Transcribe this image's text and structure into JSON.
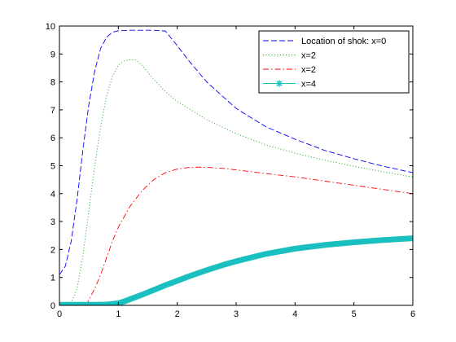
{
  "chart_data": {
    "type": "line",
    "title": "",
    "xlabel": "",
    "ylabel": "",
    "xlim": [
      0,
      6
    ],
    "ylim": [
      0,
      10
    ],
    "xticks": [
      0,
      1,
      2,
      3,
      4,
      5,
      6
    ],
    "yticks": [
      0,
      1,
      2,
      3,
      4,
      5,
      6,
      7,
      8,
      9,
      10
    ],
    "grid": false,
    "legend_position": "top-right",
    "series": [
      {
        "name": "Location of shok: x=0",
        "color": "#0000ff",
        "style": "dashed",
        "x": [
          0.0,
          0.1,
          0.2,
          0.3,
          0.4,
          0.5,
          0.6,
          0.7,
          0.8,
          0.9,
          1.0,
          1.2,
          1.4,
          1.6,
          1.8,
          2.0,
          2.2,
          2.5,
          3.0,
          3.5,
          4.0,
          4.5,
          5.0,
          5.5,
          6.0
        ],
        "y": [
          1.1,
          1.4,
          2.3,
          3.8,
          5.6,
          7.2,
          8.4,
          9.2,
          9.6,
          9.78,
          9.83,
          9.85,
          9.85,
          9.85,
          9.82,
          9.3,
          8.75,
          8.0,
          7.05,
          6.4,
          5.95,
          5.55,
          5.25,
          4.98,
          4.75
        ]
      },
      {
        "name": "x=2",
        "color": "#00a000",
        "style": "dotted",
        "x": [
          0.1,
          0.2,
          0.3,
          0.4,
          0.5,
          0.6,
          0.7,
          0.8,
          0.9,
          1.0,
          1.1,
          1.2,
          1.3,
          1.4,
          1.6,
          1.8,
          2.0,
          2.5,
          3.0,
          3.5,
          4.0,
          4.5,
          5.0,
          5.5,
          6.0
        ],
        "y": [
          0.0,
          0.1,
          0.6,
          1.8,
          3.4,
          5.0,
          6.4,
          7.5,
          8.2,
          8.6,
          8.75,
          8.8,
          8.78,
          8.6,
          8.1,
          7.65,
          7.3,
          6.65,
          6.15,
          5.75,
          5.45,
          5.2,
          4.98,
          4.78,
          4.6
        ]
      },
      {
        "name": "x=2",
        "color": "#ff0000",
        "style": "dashdot",
        "x": [
          0.45,
          0.5,
          0.6,
          0.7,
          0.8,
          0.9,
          1.0,
          1.2,
          1.4,
          1.6,
          1.8,
          2.0,
          2.2,
          2.4,
          2.6,
          2.8,
          3.0,
          3.5,
          4.0,
          4.5,
          5.0,
          5.5,
          6.0
        ],
        "y": [
          0.0,
          0.2,
          0.6,
          1.1,
          1.7,
          2.3,
          2.8,
          3.55,
          4.1,
          4.5,
          4.75,
          4.88,
          4.94,
          4.95,
          4.93,
          4.9,
          4.85,
          4.72,
          4.6,
          4.45,
          4.3,
          4.15,
          4.0
        ]
      },
      {
        "name": "x=4",
        "color": "#1abfbf",
        "style": "solid-star",
        "x": [
          0.0,
          0.2,
          0.4,
          0.6,
          0.8,
          0.9,
          1.0,
          1.1,
          1.2,
          1.4,
          1.6,
          1.8,
          2.0,
          2.2,
          2.5,
          2.8,
          3.0,
          3.5,
          4.0,
          4.5,
          5.0,
          5.5,
          6.0
        ],
        "y": [
          0.02,
          0.02,
          0.02,
          0.02,
          0.03,
          0.05,
          0.08,
          0.14,
          0.22,
          0.38,
          0.55,
          0.72,
          0.88,
          1.04,
          1.26,
          1.46,
          1.58,
          1.84,
          2.03,
          2.16,
          2.26,
          2.34,
          2.4
        ]
      }
    ]
  }
}
